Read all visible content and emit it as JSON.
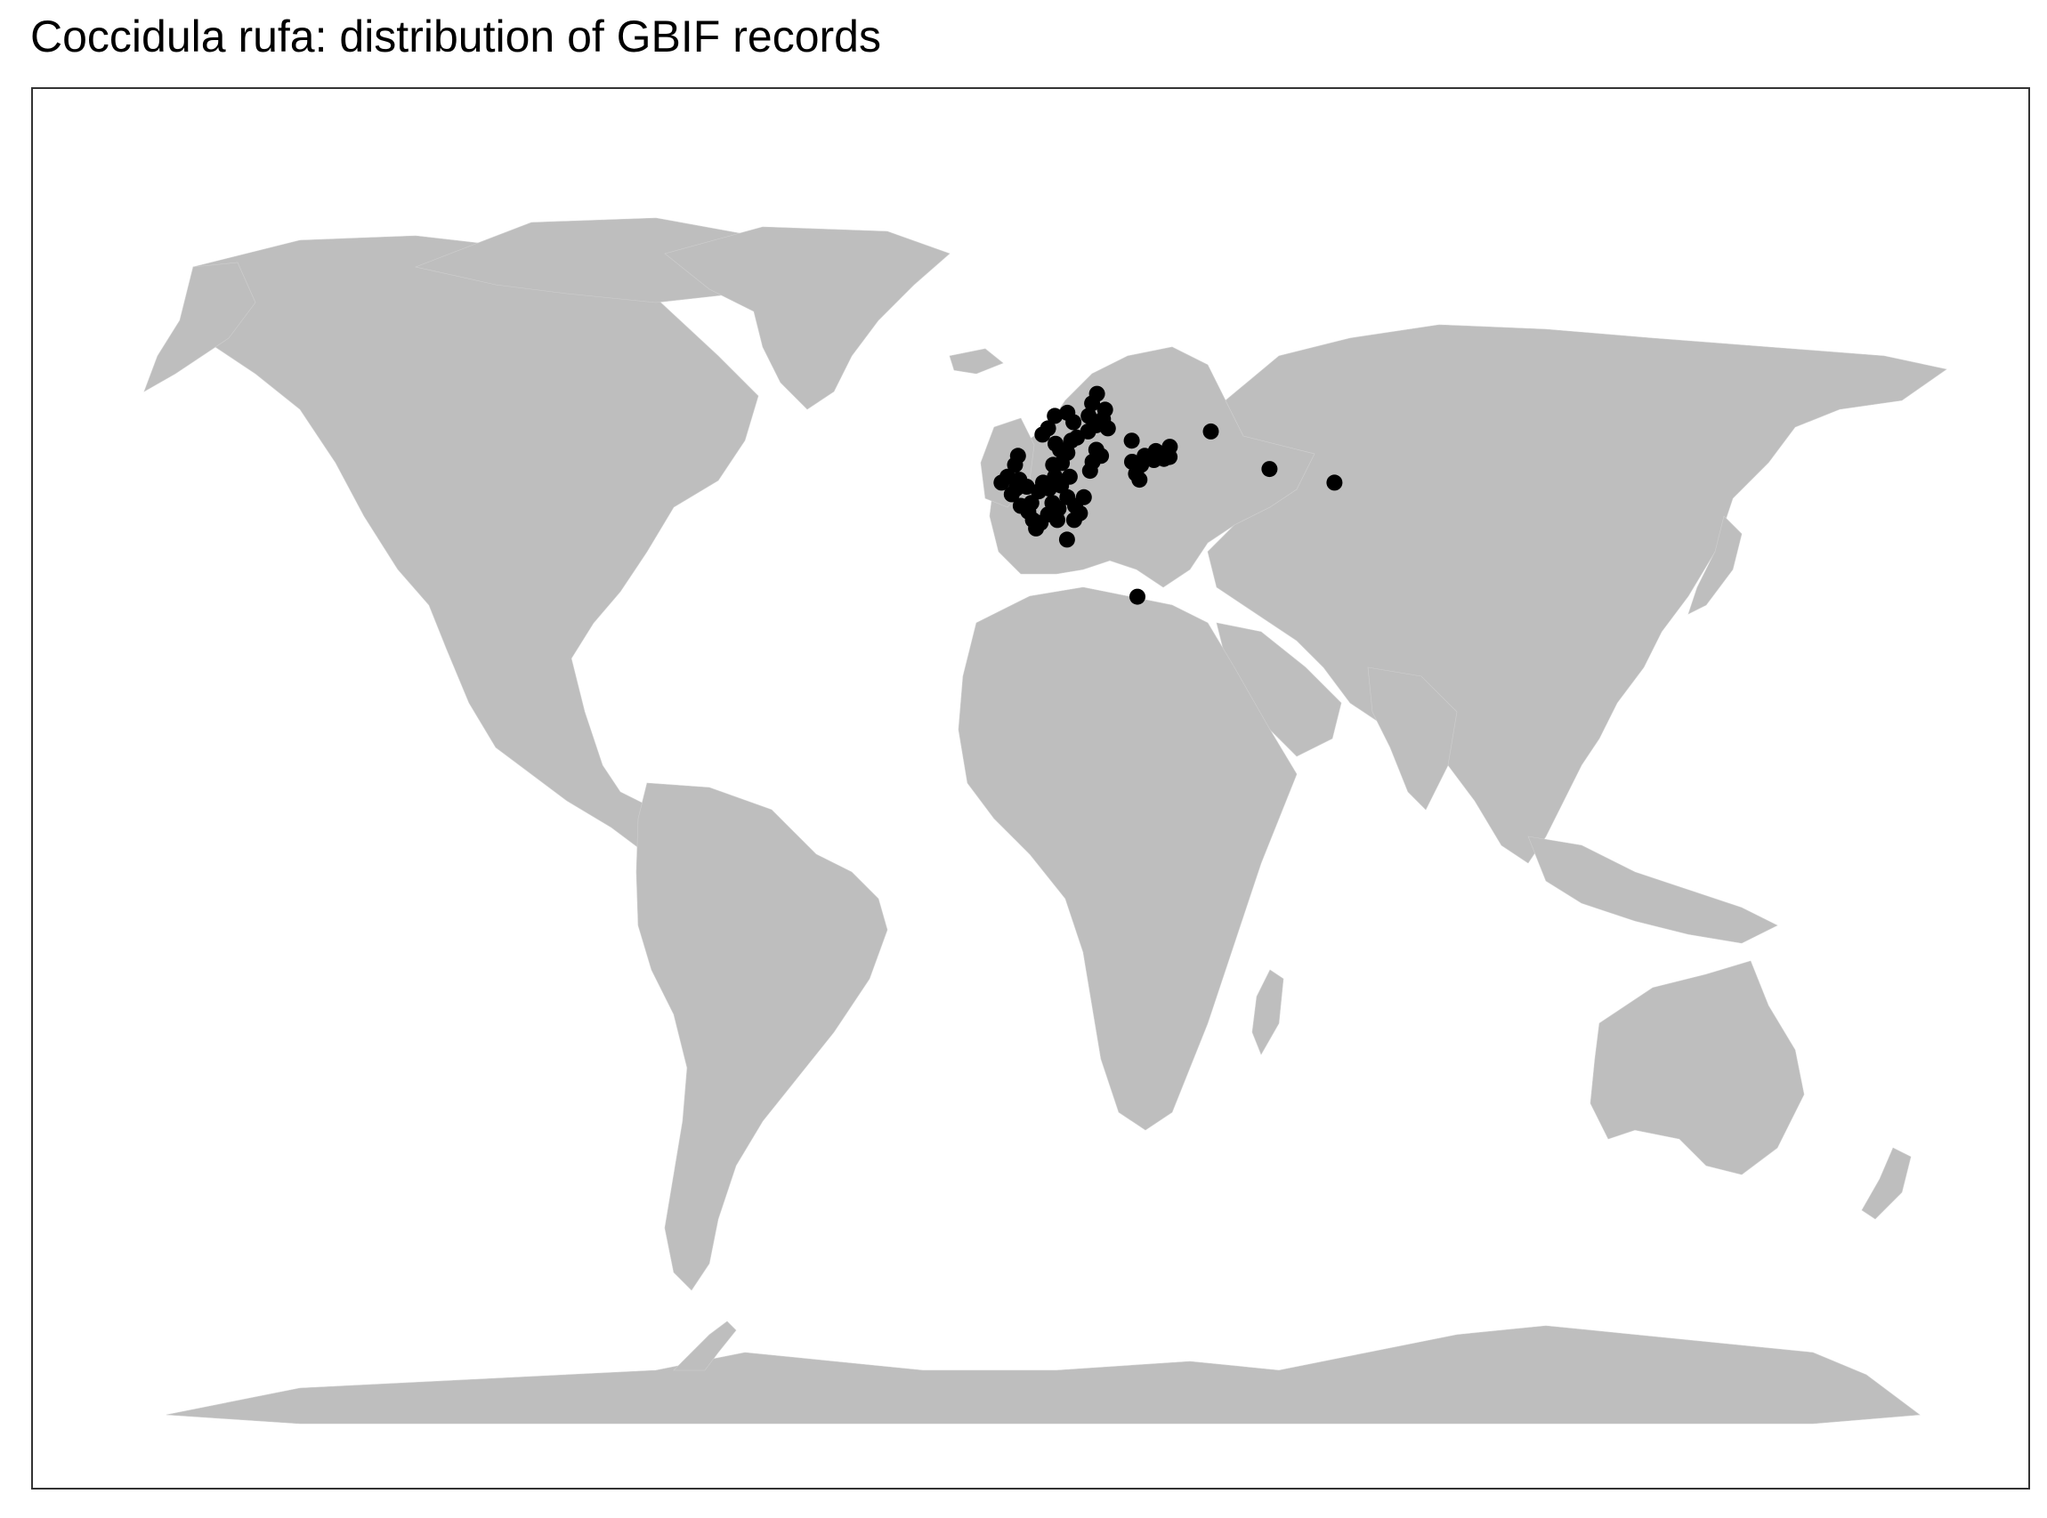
{
  "title": "Coccidula rufa: distribution of GBIF records",
  "colors": {
    "land": "#bebebe",
    "points": "#000000",
    "background": "#ffffff",
    "frame": "#333333"
  },
  "map": {
    "projection": "robinson-like world map",
    "feature": "occurrence points of Coccidula rufa",
    "points": [
      {
        "lon": -4.5,
        "lat": 50.5
      },
      {
        "lon": -3.0,
        "lat": 51.5
      },
      {
        "lon": -2.0,
        "lat": 53.0
      },
      {
        "lon": -1.0,
        "lat": 52.0
      },
      {
        "lon": 0.5,
        "lat": 51.8
      },
      {
        "lon": -3.5,
        "lat": 55.5
      },
      {
        "lon": -2.5,
        "lat": 57.0
      },
      {
        "lon": -6.0,
        "lat": 53.5
      },
      {
        "lon": -8.0,
        "lat": 52.5
      },
      {
        "lon": -1.5,
        "lat": 48.5
      },
      {
        "lon": 1.0,
        "lat": 47.5
      },
      {
        "lon": 2.5,
        "lat": 46.0
      },
      {
        "lon": 3.5,
        "lat": 44.5
      },
      {
        "lon": 5.0,
        "lat": 45.5
      },
      {
        "lon": 2.0,
        "lat": 49.0
      },
      {
        "lon": 4.5,
        "lat": 51.0
      },
      {
        "lon": 6.0,
        "lat": 52.5
      },
      {
        "lon": 8.0,
        "lat": 51.5
      },
      {
        "lon": 10.0,
        "lat": 53.5
      },
      {
        "lon": 12.0,
        "lat": 52.0
      },
      {
        "lon": 9.0,
        "lat": 49.0
      },
      {
        "lon": 11.0,
        "lat": 48.0
      },
      {
        "lon": 7.5,
        "lat": 47.0
      },
      {
        "lon": 10.5,
        "lat": 46.0
      },
      {
        "lon": 14.0,
        "lat": 50.0
      },
      {
        "lon": 16.5,
        "lat": 48.5
      },
      {
        "lon": 18.0,
        "lat": 47.2
      },
      {
        "lon": 9.5,
        "lat": 55.5
      },
      {
        "lon": 12.5,
        "lat": 55.8
      },
      {
        "lon": 10.5,
        "lat": 59.0
      },
      {
        "lon": 12.0,
        "lat": 58.0
      },
      {
        "lon": 14.5,
        "lat": 57.5
      },
      {
        "lon": 16.0,
        "lat": 59.5
      },
      {
        "lon": 18.0,
        "lat": 60.0
      },
      {
        "lon": 17.0,
        "lat": 62.5
      },
      {
        "lon": 15.0,
        "lat": 64.0
      },
      {
        "lon": 8.0,
        "lat": 61.5
      },
      {
        "lon": 6.0,
        "lat": 60.5
      },
      {
        "lon": 10.5,
        "lat": 63.5
      },
      {
        "lon": 22.0,
        "lat": 61.0
      },
      {
        "lon": 25.0,
        "lat": 62.0
      },
      {
        "lon": 27.5,
        "lat": 63.0
      },
      {
        "lon": 24.0,
        "lat": 65.5
      },
      {
        "lon": 26.0,
        "lat": 67.0
      },
      {
        "lon": 22.5,
        "lat": 63.5
      },
      {
        "lon": 29.0,
        "lat": 61.5
      },
      {
        "lon": 28.5,
        "lat": 64.5
      },
      {
        "lon": 24.5,
        "lat": 58.0
      },
      {
        "lon": 26.0,
        "lat": 57.0
      },
      {
        "lon": 23.0,
        "lat": 56.0
      },
      {
        "lon": 22.0,
        "lat": 54.5
      },
      {
        "lon": 15.0,
        "lat": 53.5
      },
      {
        "lon": 19.5,
        "lat": 50.0
      },
      {
        "lon": 16.0,
        "lat": 46.0
      },
      {
        "lon": 13.5,
        "lat": 42.5
      },
      {
        "lon": 36.5,
        "lat": 56.0
      },
      {
        "lon": 37.5,
        "lat": 54.0
      },
      {
        "lon": 39.5,
        "lat": 55.5
      },
      {
        "lon": 41.0,
        "lat": 57.0
      },
      {
        "lon": 44.0,
        "lat": 56.3
      },
      {
        "lon": 47.5,
        "lat": 56.5
      },
      {
        "lon": 49.5,
        "lat": 56.8
      },
      {
        "lon": 50.0,
        "lat": 58.5
      },
      {
        "lon": 37.0,
        "lat": 59.5
      },
      {
        "lon": 38.5,
        "lat": 53.0
      },
      {
        "lon": 45.0,
        "lat": 57.8
      },
      {
        "lon": 65.0,
        "lat": 61.0
      },
      {
        "lon": 83.0,
        "lat": 54.8
      },
      {
        "lon": 104.0,
        "lat": 52.5
      },
      {
        "lon": 35.2,
        "lat": 31.8
      }
    ]
  }
}
